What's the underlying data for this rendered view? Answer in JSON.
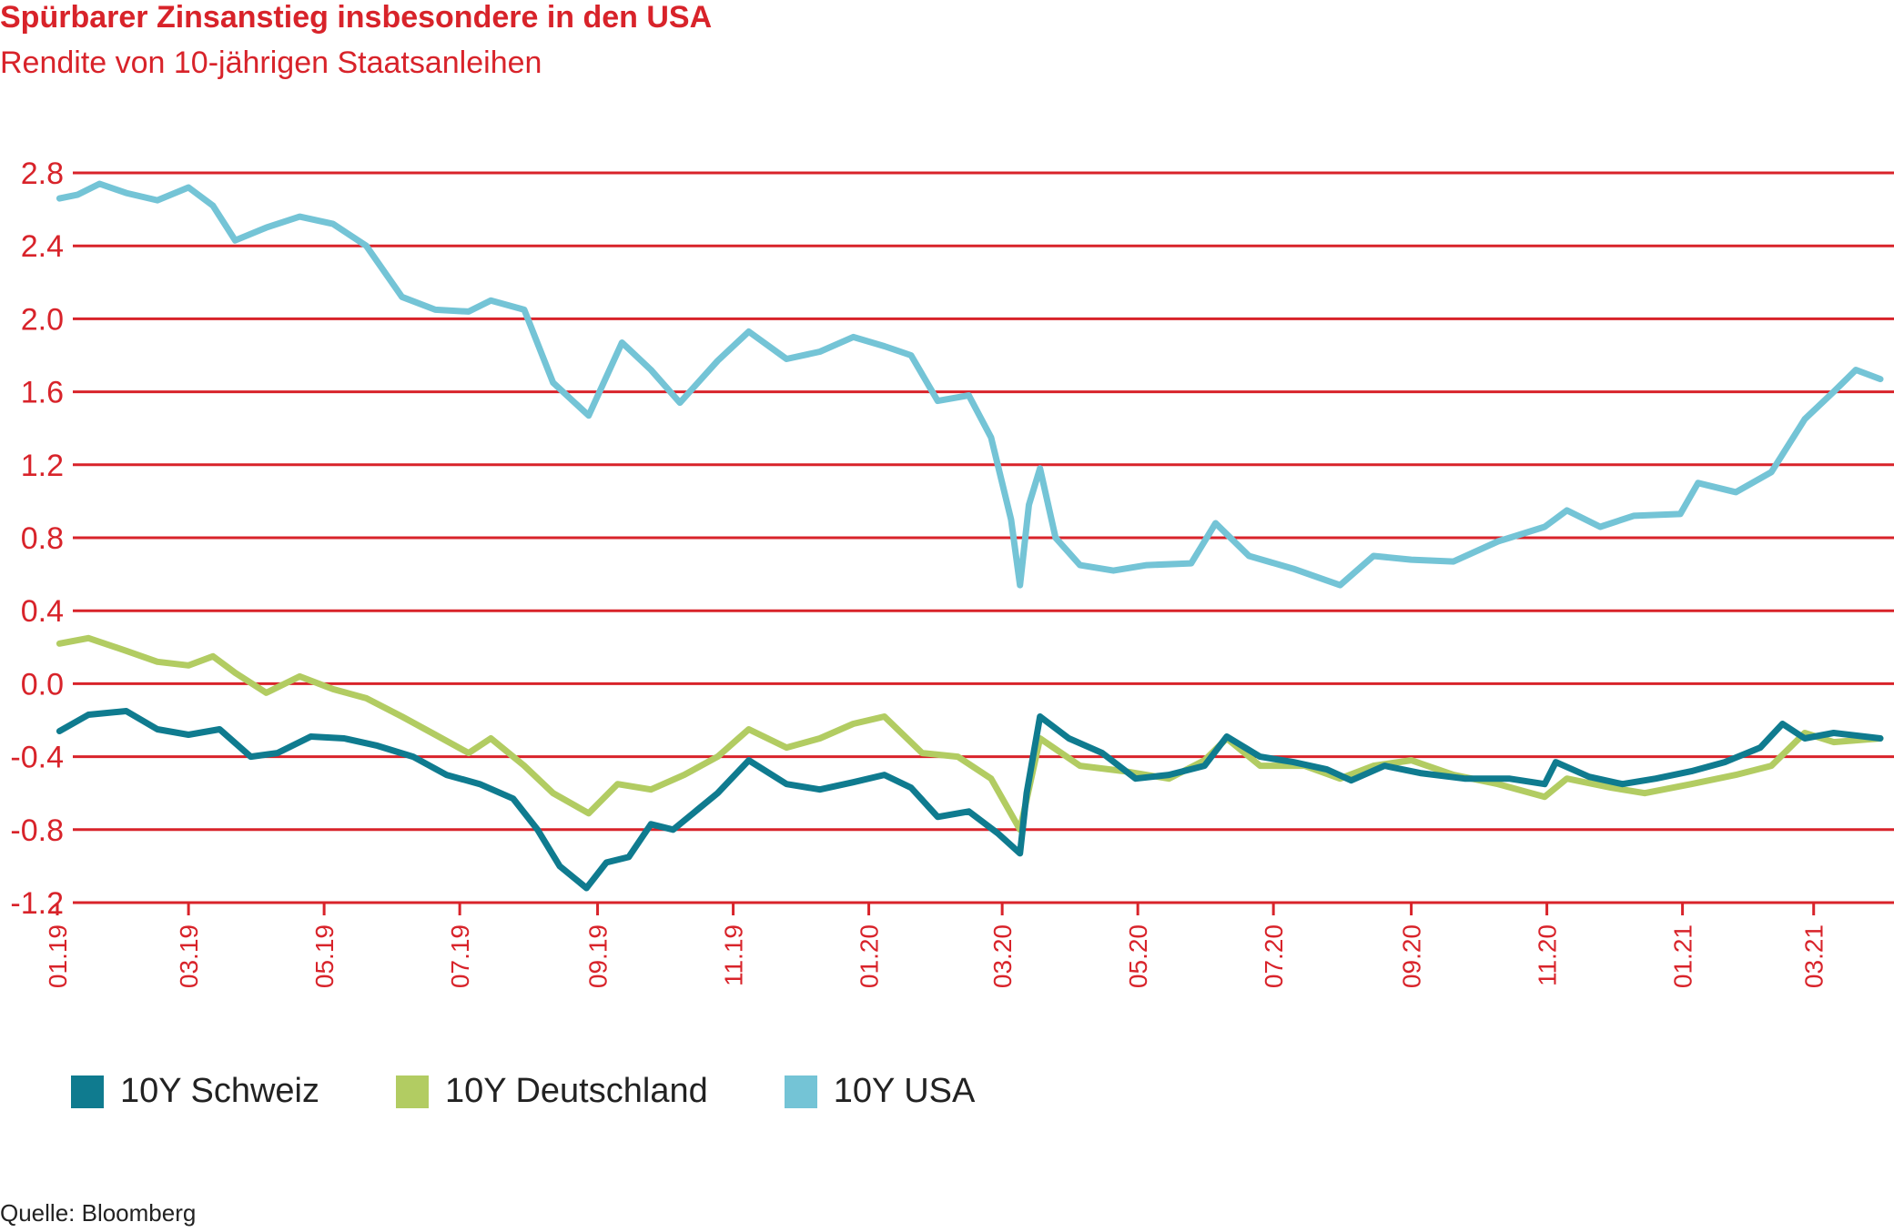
{
  "title": "Spürbarer Zinsanstieg insbesondere in den USA",
  "subtitle": "Rendite von 10-jährigen Staatsanleihen",
  "source": "Quelle: Bloomberg",
  "colors": {
    "accent": "#d8232a",
    "ch": "#0f7b8f",
    "de": "#b2cc62",
    "us": "#74c4d6"
  },
  "chart_data": {
    "type": "line",
    "ylim": [
      -1.2,
      2.8
    ],
    "yticks": [
      "2.8",
      "2.4",
      "2.0",
      "1.6",
      "1.2",
      "0.8",
      "0.4",
      "0.0",
      "-0.4",
      "-0.8",
      "-1.2"
    ],
    "ytick_values": [
      2.8,
      2.4,
      2.0,
      1.6,
      1.2,
      0.8,
      0.4,
      0.0,
      -0.4,
      -0.8,
      -1.2
    ],
    "xrange": [
      "2019-01-01",
      "2021-03-31"
    ],
    "xticks": [
      "01.19",
      "03.19",
      "05.19",
      "07.19",
      "09.19",
      "11.19",
      "01.20",
      "03.20",
      "05.20",
      "07.20",
      "09.20",
      "11.20",
      "01.21",
      "03.21"
    ],
    "xtick_dates": [
      "2019-01-01",
      "2019-03-01",
      "2019-05-01",
      "2019-07-01",
      "2019-09-01",
      "2019-11-01",
      "2020-01-01",
      "2020-03-01",
      "2020-05-01",
      "2020-07-01",
      "2020-09-01",
      "2020-11-01",
      "2021-01-01",
      "2021-03-01"
    ],
    "legend": "bottom-left",
    "grid": "horizontal",
    "series": [
      {
        "name": "10Y Schweiz",
        "color": "#0f7b8f",
        "points": [
          [
            "2019-01-02",
            -0.26
          ],
          [
            "2019-01-15",
            -0.17
          ],
          [
            "2019-02-01",
            -0.15
          ],
          [
            "2019-02-15",
            -0.25
          ],
          [
            "2019-03-01",
            -0.28
          ],
          [
            "2019-03-15",
            -0.25
          ],
          [
            "2019-03-29",
            -0.4
          ],
          [
            "2019-04-10",
            -0.38
          ],
          [
            "2019-04-25",
            -0.29
          ],
          [
            "2019-05-10",
            -0.3
          ],
          [
            "2019-05-25",
            -0.34
          ],
          [
            "2019-06-10",
            -0.4
          ],
          [
            "2019-06-25",
            -0.5
          ],
          [
            "2019-07-10",
            -0.55
          ],
          [
            "2019-07-25",
            -0.63
          ],
          [
            "2019-08-05",
            -0.8
          ],
          [
            "2019-08-15",
            -1.0
          ],
          [
            "2019-08-27",
            -1.12
          ],
          [
            "2019-09-05",
            -0.98
          ],
          [
            "2019-09-15",
            -0.95
          ],
          [
            "2019-09-25",
            -0.77
          ],
          [
            "2019-10-05",
            -0.8
          ],
          [
            "2019-10-15",
            -0.7
          ],
          [
            "2019-10-25",
            -0.6
          ],
          [
            "2019-11-08",
            -0.42
          ],
          [
            "2019-11-25",
            -0.55
          ],
          [
            "2019-12-10",
            -0.58
          ],
          [
            "2019-12-25",
            -0.54
          ],
          [
            "2020-01-08",
            -0.5
          ],
          [
            "2020-01-20",
            -0.57
          ],
          [
            "2020-02-01",
            -0.73
          ],
          [
            "2020-02-15",
            -0.7
          ],
          [
            "2020-02-28",
            -0.82
          ],
          [
            "2020-03-09",
            -0.93
          ],
          [
            "2020-03-12",
            -0.6
          ],
          [
            "2020-03-18",
            -0.18
          ],
          [
            "2020-03-31",
            -0.3
          ],
          [
            "2020-04-15",
            -0.38
          ],
          [
            "2020-04-30",
            -0.52
          ],
          [
            "2020-05-15",
            -0.5
          ],
          [
            "2020-05-31",
            -0.45
          ],
          [
            "2020-06-10",
            -0.29
          ],
          [
            "2020-06-25",
            -0.4
          ],
          [
            "2020-07-10",
            -0.43
          ],
          [
            "2020-07-25",
            -0.47
          ],
          [
            "2020-08-05",
            -0.53
          ],
          [
            "2020-08-20",
            -0.45
          ],
          [
            "2020-09-05",
            -0.49
          ],
          [
            "2020-09-25",
            -0.52
          ],
          [
            "2020-10-15",
            -0.52
          ],
          [
            "2020-10-31",
            -0.55
          ],
          [
            "2020-11-05",
            -0.43
          ],
          [
            "2020-11-20",
            -0.51
          ],
          [
            "2020-12-05",
            -0.55
          ],
          [
            "2020-12-20",
            -0.52
          ],
          [
            "2021-01-05",
            -0.48
          ],
          [
            "2021-01-20",
            -0.43
          ],
          [
            "2021-02-05",
            -0.35
          ],
          [
            "2021-02-15",
            -0.22
          ],
          [
            "2021-02-25",
            -0.3
          ],
          [
            "2021-03-10",
            -0.27
          ],
          [
            "2021-03-31",
            -0.3
          ]
        ]
      },
      {
        "name": "10Y Deutschland",
        "color": "#b2cc62",
        "points": [
          [
            "2019-01-02",
            0.22
          ],
          [
            "2019-01-15",
            0.25
          ],
          [
            "2019-02-01",
            0.18
          ],
          [
            "2019-02-15",
            0.12
          ],
          [
            "2019-03-01",
            0.1
          ],
          [
            "2019-03-12",
            0.15
          ],
          [
            "2019-03-22",
            0.06
          ],
          [
            "2019-04-05",
            -0.05
          ],
          [
            "2019-04-20",
            0.04
          ],
          [
            "2019-05-05",
            -0.03
          ],
          [
            "2019-05-20",
            -0.08
          ],
          [
            "2019-06-05",
            -0.18
          ],
          [
            "2019-06-20",
            -0.28
          ],
          [
            "2019-07-05",
            -0.38
          ],
          [
            "2019-07-15",
            -0.3
          ],
          [
            "2019-07-30",
            -0.45
          ],
          [
            "2019-08-12",
            -0.6
          ],
          [
            "2019-08-28",
            -0.71
          ],
          [
            "2019-09-10",
            -0.55
          ],
          [
            "2019-09-25",
            -0.58
          ],
          [
            "2019-10-10",
            -0.5
          ],
          [
            "2019-10-25",
            -0.4
          ],
          [
            "2019-11-08",
            -0.25
          ],
          [
            "2019-11-25",
            -0.35
          ],
          [
            "2019-12-10",
            -0.3
          ],
          [
            "2019-12-25",
            -0.22
          ],
          [
            "2020-01-08",
            -0.18
          ],
          [
            "2020-01-25",
            -0.38
          ],
          [
            "2020-02-10",
            -0.4
          ],
          [
            "2020-02-25",
            -0.52
          ],
          [
            "2020-03-09",
            -0.8
          ],
          [
            "2020-03-18",
            -0.3
          ],
          [
            "2020-04-05",
            -0.45
          ],
          [
            "2020-04-25",
            -0.48
          ],
          [
            "2020-05-15",
            -0.52
          ],
          [
            "2020-05-31",
            -0.42
          ],
          [
            "2020-06-10",
            -0.3
          ],
          [
            "2020-06-25",
            -0.45
          ],
          [
            "2020-07-15",
            -0.45
          ],
          [
            "2020-07-31",
            -0.52
          ],
          [
            "2020-08-15",
            -0.45
          ],
          [
            "2020-09-01",
            -0.42
          ],
          [
            "2020-09-20",
            -0.5
          ],
          [
            "2020-10-10",
            -0.55
          ],
          [
            "2020-10-31",
            -0.62
          ],
          [
            "2020-11-10",
            -0.52
          ],
          [
            "2020-11-30",
            -0.57
          ],
          [
            "2020-12-15",
            -0.6
          ],
          [
            "2021-01-05",
            -0.55
          ],
          [
            "2021-01-25",
            -0.5
          ],
          [
            "2021-02-10",
            -0.45
          ],
          [
            "2021-02-25",
            -0.27
          ],
          [
            "2021-03-10",
            -0.32
          ],
          [
            "2021-03-31",
            -0.3
          ]
        ]
      },
      {
        "name": "10Y USA",
        "color": "#74c4d6",
        "points": [
          [
            "2019-01-02",
            2.66
          ],
          [
            "2019-01-10",
            2.68
          ],
          [
            "2019-01-20",
            2.74
          ],
          [
            "2019-02-01",
            2.69
          ],
          [
            "2019-02-15",
            2.65
          ],
          [
            "2019-03-01",
            2.72
          ],
          [
            "2019-03-12",
            2.62
          ],
          [
            "2019-03-22",
            2.43
          ],
          [
            "2019-04-05",
            2.5
          ],
          [
            "2019-04-20",
            2.56
          ],
          [
            "2019-05-05",
            2.52
          ],
          [
            "2019-05-20",
            2.4
          ],
          [
            "2019-06-05",
            2.12
          ],
          [
            "2019-06-20",
            2.05
          ],
          [
            "2019-07-05",
            2.04
          ],
          [
            "2019-07-15",
            2.1
          ],
          [
            "2019-07-30",
            2.05
          ],
          [
            "2019-08-12",
            1.65
          ],
          [
            "2019-08-28",
            1.47
          ],
          [
            "2019-09-12",
            1.87
          ],
          [
            "2019-09-25",
            1.72
          ],
          [
            "2019-10-08",
            1.54
          ],
          [
            "2019-10-25",
            1.77
          ],
          [
            "2019-11-08",
            1.93
          ],
          [
            "2019-11-25",
            1.78
          ],
          [
            "2019-12-10",
            1.82
          ],
          [
            "2019-12-25",
            1.9
          ],
          [
            "2020-01-08",
            1.85
          ],
          [
            "2020-01-20",
            1.8
          ],
          [
            "2020-02-01",
            1.55
          ],
          [
            "2020-02-15",
            1.58
          ],
          [
            "2020-02-25",
            1.35
          ],
          [
            "2020-03-05",
            0.9
          ],
          [
            "2020-03-09",
            0.54
          ],
          [
            "2020-03-13",
            0.98
          ],
          [
            "2020-03-18",
            1.18
          ],
          [
            "2020-03-25",
            0.8
          ],
          [
            "2020-04-05",
            0.65
          ],
          [
            "2020-04-20",
            0.62
          ],
          [
            "2020-05-05",
            0.65
          ],
          [
            "2020-05-25",
            0.66
          ],
          [
            "2020-06-05",
            0.88
          ],
          [
            "2020-06-20",
            0.7
          ],
          [
            "2020-07-10",
            0.63
          ],
          [
            "2020-07-31",
            0.54
          ],
          [
            "2020-08-15",
            0.7
          ],
          [
            "2020-09-01",
            0.68
          ],
          [
            "2020-09-20",
            0.67
          ],
          [
            "2020-10-10",
            0.78
          ],
          [
            "2020-10-31",
            0.86
          ],
          [
            "2020-11-10",
            0.95
          ],
          [
            "2020-11-25",
            0.86
          ],
          [
            "2020-12-10",
            0.92
          ],
          [
            "2020-12-31",
            0.93
          ],
          [
            "2021-01-08",
            1.1
          ],
          [
            "2021-01-25",
            1.05
          ],
          [
            "2021-02-10",
            1.16
          ],
          [
            "2021-02-25",
            1.45
          ],
          [
            "2021-03-10",
            1.6
          ],
          [
            "2021-03-20",
            1.72
          ],
          [
            "2021-03-31",
            1.67
          ]
        ]
      }
    ]
  }
}
